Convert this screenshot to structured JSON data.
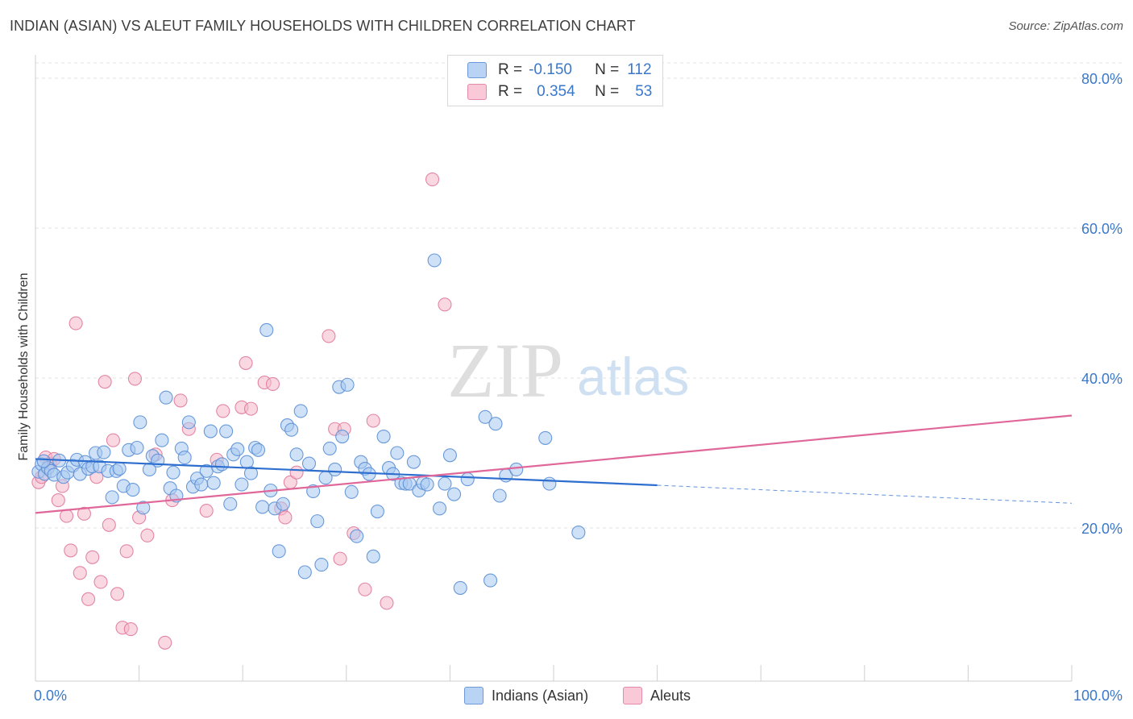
{
  "title": "INDIAN (ASIAN) VS ALEUT FAMILY HOUSEHOLDS WITH CHILDREN CORRELATION CHART",
  "source": "Source: ZipAtlas.com",
  "watermark": {
    "part1": "ZIP",
    "part2": "atlas"
  },
  "legend": {
    "rows": [
      {
        "r_label": "R =",
        "r_value": "-0.150",
        "n_label": "N =",
        "n_value": "112"
      },
      {
        "r_label": "R =",
        "r_value": "0.354",
        "n_label": "N =",
        "n_value": "53"
      }
    ]
  },
  "bottom_legend": {
    "series1": "Indians (Asian)",
    "series2": "Aleuts"
  },
  "chart_data": {
    "type": "scatter",
    "title": "INDIAN (ASIAN) VS ALEUT FAMILY HOUSEHOLDS WITH CHILDREN CORRELATION CHART",
    "xlabel": "",
    "ylabel": "Family Households with Children",
    "xlim": [
      0,
      100
    ],
    "ylim": [
      0,
      82
    ],
    "x_tick_labels": [
      "0.0%",
      "100.0%"
    ],
    "y_ticks": [
      20,
      40,
      60,
      80
    ],
    "y_tick_labels": [
      "20.0%",
      "40.0%",
      "60.0%",
      "80.0%"
    ],
    "grid": "horizontal dashed",
    "legend_position": "top-center",
    "colors": {
      "series1_fill": "#a8c8f0",
      "series1_stroke": "#5a8fd6",
      "series1_line": "#2d6ecf",
      "series2_fill": "#f6b8cb",
      "series2_stroke": "#e07a9c",
      "series2_line": "#e0679a",
      "axis_label": "#3b78c9"
    },
    "series": [
      {
        "name": "Indians (Asian)",
        "trend": {
          "x0": 0,
          "y0": 29.2,
          "x1": 60,
          "y1": 25.7,
          "dashed_to_x": 100,
          "dashed_to_y": 23.3
        },
        "points": [
          [
            0.3,
            27.5
          ],
          [
            0.6,
            28.5
          ],
          [
            0.9,
            27.2
          ],
          [
            1.2,
            28.0
          ],
          [
            1.5,
            27.6
          ],
          [
            0.8,
            28.9
          ],
          [
            1.8,
            27.1
          ],
          [
            2.3,
            29.0
          ],
          [
            2.7,
            26.8
          ],
          [
            3.1,
            27.4
          ],
          [
            3.6,
            28.3
          ],
          [
            4.0,
            29.1
          ],
          [
            4.3,
            27.2
          ],
          [
            4.8,
            28.8
          ],
          [
            5.1,
            27.9
          ],
          [
            5.5,
            28.2
          ],
          [
            5.8,
            30.0
          ],
          [
            6.2,
            28.2
          ],
          [
            6.6,
            30.1
          ],
          [
            7.0,
            27.6
          ],
          [
            7.4,
            24.1
          ],
          [
            7.8,
            27.6
          ],
          [
            8.1,
            27.9
          ],
          [
            8.5,
            25.6
          ],
          [
            9.0,
            30.4
          ],
          [
            9.4,
            25.1
          ],
          [
            9.8,
            30.7
          ],
          [
            10.1,
            34.1
          ],
          [
            10.4,
            22.7
          ],
          [
            11.0,
            27.8
          ],
          [
            11.3,
            29.6
          ],
          [
            11.8,
            29.0
          ],
          [
            12.2,
            31.7
          ],
          [
            12.6,
            37.4
          ],
          [
            13.0,
            25.3
          ],
          [
            13.3,
            27.4
          ],
          [
            13.6,
            24.3
          ],
          [
            14.1,
            30.6
          ],
          [
            14.4,
            29.4
          ],
          [
            14.8,
            34.1
          ],
          [
            15.2,
            25.5
          ],
          [
            15.6,
            26.6
          ],
          [
            16.0,
            25.8
          ],
          [
            16.5,
            27.6
          ],
          [
            16.9,
            32.9
          ],
          [
            17.2,
            26.0
          ],
          [
            17.6,
            28.2
          ],
          [
            18.0,
            28.5
          ],
          [
            18.4,
            32.9
          ],
          [
            18.8,
            23.2
          ],
          [
            19.1,
            29.8
          ],
          [
            19.5,
            30.5
          ],
          [
            19.9,
            25.8
          ],
          [
            20.4,
            28.8
          ],
          [
            20.8,
            27.3
          ],
          [
            21.2,
            30.7
          ],
          [
            21.5,
            30.4
          ],
          [
            21.9,
            22.8
          ],
          [
            22.3,
            46.4
          ],
          [
            22.7,
            25.0
          ],
          [
            23.1,
            22.6
          ],
          [
            23.5,
            16.9
          ],
          [
            23.9,
            23.2
          ],
          [
            24.3,
            33.7
          ],
          [
            24.7,
            33.1
          ],
          [
            25.2,
            29.8
          ],
          [
            25.6,
            35.6
          ],
          [
            26.0,
            14.1
          ],
          [
            26.4,
            28.6
          ],
          [
            26.8,
            24.9
          ],
          [
            27.2,
            20.9
          ],
          [
            27.6,
            15.1
          ],
          [
            28.0,
            26.7
          ],
          [
            28.4,
            30.6
          ],
          [
            28.9,
            27.8
          ],
          [
            29.3,
            38.8
          ],
          [
            29.6,
            32.2
          ],
          [
            30.1,
            39.1
          ],
          [
            30.5,
            24.8
          ],
          [
            31.0,
            18.9
          ],
          [
            31.4,
            28.8
          ],
          [
            31.8,
            27.9
          ],
          [
            32.2,
            27.2
          ],
          [
            32.6,
            16.2
          ],
          [
            33.0,
            22.2
          ],
          [
            33.6,
            32.2
          ],
          [
            34.1,
            28.0
          ],
          [
            34.5,
            27.2
          ],
          [
            34.9,
            30.0
          ],
          [
            35.3,
            26.0
          ],
          [
            35.7,
            25.9
          ],
          [
            36.1,
            25.9
          ],
          [
            36.5,
            28.8
          ],
          [
            37.0,
            25.0
          ],
          [
            37.4,
            26.0
          ],
          [
            37.8,
            25.8
          ],
          [
            38.5,
            55.7
          ],
          [
            39.0,
            22.6
          ],
          [
            39.5,
            25.9
          ],
          [
            40.0,
            29.7
          ],
          [
            40.4,
            24.5
          ],
          [
            41.0,
            12.0
          ],
          [
            41.7,
            26.5
          ],
          [
            43.4,
            34.8
          ],
          [
            43.9,
            13.0
          ],
          [
            44.4,
            33.9
          ],
          [
            44.8,
            24.3
          ],
          [
            45.4,
            27.0
          ],
          [
            46.4,
            27.8
          ],
          [
            49.2,
            32.0
          ],
          [
            49.6,
            25.9
          ],
          [
            52.4,
            19.4
          ]
        ]
      },
      {
        "name": "Aleuts",
        "trend": {
          "x0": 0,
          "y0": 22.0,
          "x1": 100,
          "y1": 35.0
        },
        "points": [
          [
            0.3,
            26.1
          ],
          [
            0.6,
            26.8
          ],
          [
            1.0,
            29.4
          ],
          [
            1.4,
            28.6
          ],
          [
            1.8,
            29.2
          ],
          [
            2.2,
            23.7
          ],
          [
            2.6,
            25.6
          ],
          [
            3.0,
            21.6
          ],
          [
            3.4,
            17.0
          ],
          [
            3.9,
            47.3
          ],
          [
            4.3,
            14.0
          ],
          [
            4.7,
            21.9
          ],
          [
            5.1,
            10.5
          ],
          [
            5.5,
            16.1
          ],
          [
            5.9,
            26.8
          ],
          [
            6.3,
            12.8
          ],
          [
            6.7,
            39.5
          ],
          [
            7.1,
            20.4
          ],
          [
            7.5,
            31.7
          ],
          [
            7.9,
            11.2
          ],
          [
            8.4,
            6.7
          ],
          [
            8.8,
            16.9
          ],
          [
            9.2,
            6.5
          ],
          [
            9.6,
            39.9
          ],
          [
            10.0,
            21.4
          ],
          [
            10.8,
            19.0
          ],
          [
            11.6,
            29.8
          ],
          [
            12.5,
            4.7
          ],
          [
            13.2,
            23.7
          ],
          [
            14.0,
            37.0
          ],
          [
            14.8,
            33.2
          ],
          [
            16.5,
            22.3
          ],
          [
            17.5,
            29.1
          ],
          [
            18.1,
            35.6
          ],
          [
            19.9,
            36.1
          ],
          [
            20.3,
            42.0
          ],
          [
            20.8,
            35.9
          ],
          [
            22.1,
            39.4
          ],
          [
            22.9,
            39.2
          ],
          [
            23.7,
            22.6
          ],
          [
            24.1,
            21.4
          ],
          [
            24.6,
            26.1
          ],
          [
            25.2,
            27.4
          ],
          [
            28.3,
            45.6
          ],
          [
            28.9,
            33.2
          ],
          [
            29.4,
            15.9
          ],
          [
            29.8,
            33.2
          ],
          [
            30.7,
            19.3
          ],
          [
            31.8,
            11.8
          ],
          [
            32.6,
            34.3
          ],
          [
            33.9,
            10.0
          ],
          [
            38.3,
            66.5
          ],
          [
            39.5,
            49.8
          ]
        ]
      }
    ]
  }
}
